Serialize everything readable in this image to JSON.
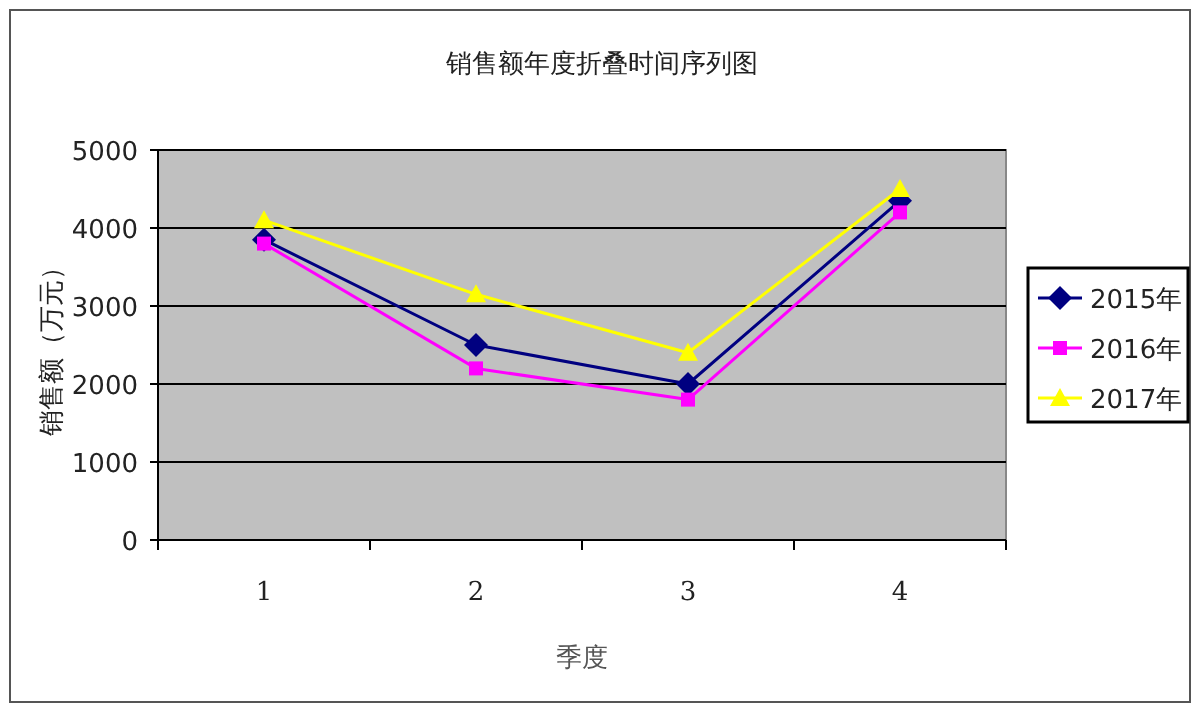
{
  "chart_data": {
    "type": "line",
    "title": "销售额年度折叠时间序列图",
    "xlabel": "季度",
    "ylabel": "销售额（万元）",
    "categories": [
      "1",
      "2",
      "3",
      "4"
    ],
    "series": [
      {
        "name": "2015年",
        "color": "#000080",
        "marker": "diamond",
        "values": [
          3850,
          2500,
          2000,
          4350
        ]
      },
      {
        "name": "2016年",
        "color": "#ff00ff",
        "marker": "square",
        "values": [
          3800,
          2200,
          1800,
          4200
        ]
      },
      {
        "name": "2017年",
        "color": "#ffff00",
        "marker": "triangle",
        "values": [
          4100,
          3150,
          2400,
          4500
        ]
      }
    ],
    "ylim": [
      0,
      5000
    ],
    "yticks": [
      0,
      1000,
      2000,
      3000,
      4000,
      5000
    ],
    "grid": "y",
    "legend": "right"
  }
}
